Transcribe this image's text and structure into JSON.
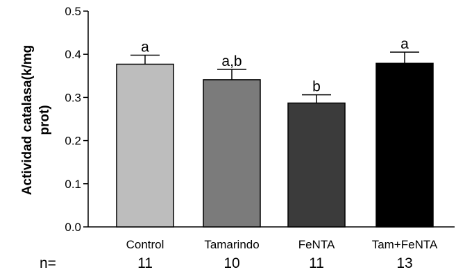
{
  "chart_data": {
    "type": "bar",
    "title": "",
    "xlabel": "",
    "ylabel_lines": [
      "Actividad catalasa(k/mg",
      "prot)"
    ],
    "ylim": [
      0,
      0.5
    ],
    "yticks": [
      "0.0",
      "0.1",
      "0.2",
      "0.3",
      "0.4",
      "0.5"
    ],
    "categories": [
      "Control",
      "Tamarindo",
      "FeNTA",
      "Tam+FeNTA"
    ],
    "values": [
      0.377,
      0.341,
      0.287,
      0.379
    ],
    "errors": [
      0.021,
      0.024,
      0.019,
      0.026
    ],
    "significance": [
      "a",
      "a,b",
      "b",
      "a"
    ],
    "n_label": "n=",
    "n_values": [
      "11",
      "10",
      "11",
      "13"
    ],
    "bar_colors": [
      "#bdbdbd",
      "#7b7b7b",
      "#3b3b3b",
      "#000000"
    ],
    "grid": false,
    "legend": "none"
  }
}
